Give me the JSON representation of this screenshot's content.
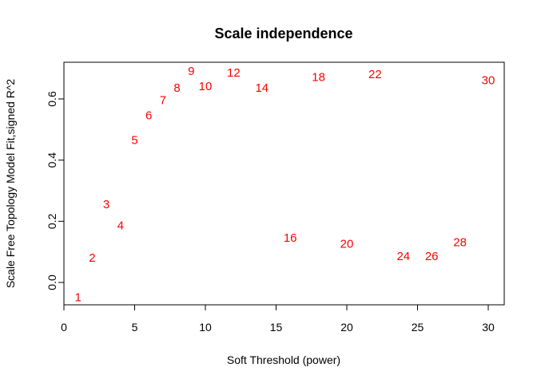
{
  "chart_data": {
    "type": "scatter",
    "title": "Scale independence",
    "xlabel": "Soft Threshold (power)",
    "ylabel": "Scale Free Topology Model Fit,signed R^2",
    "xlim": [
      0,
      30
    ],
    "ylim": [
      0,
      0.6
    ],
    "x_ticks": [
      "0",
      "5",
      "10",
      "15",
      "20",
      "25",
      "30"
    ],
    "y_ticks": [
      "0.0",
      "0.2",
      "0.4",
      "0.6"
    ],
    "grid": false,
    "marker": "text-labels",
    "color": "#ff0000",
    "points": [
      {
        "x": 1,
        "y": -0.05,
        "label": "1"
      },
      {
        "x": 2,
        "y": 0.08,
        "label": "2"
      },
      {
        "x": 3,
        "y": 0.255,
        "label": "3"
      },
      {
        "x": 4,
        "y": 0.185,
        "label": "4"
      },
      {
        "x": 5,
        "y": 0.465,
        "label": "5"
      },
      {
        "x": 6,
        "y": 0.545,
        "label": "6"
      },
      {
        "x": 7,
        "y": 0.595,
        "label": "7"
      },
      {
        "x": 8,
        "y": 0.635,
        "label": "8"
      },
      {
        "x": 9,
        "y": 0.69,
        "label": "9"
      },
      {
        "x": 10,
        "y": 0.64,
        "label": "10"
      },
      {
        "x": 12,
        "y": 0.685,
        "label": "12"
      },
      {
        "x": 14,
        "y": 0.635,
        "label": "14"
      },
      {
        "x": 16,
        "y": 0.145,
        "label": "16"
      },
      {
        "x": 18,
        "y": 0.67,
        "label": "18"
      },
      {
        "x": 20,
        "y": 0.125,
        "label": "20"
      },
      {
        "x": 22,
        "y": 0.68,
        "label": "22"
      },
      {
        "x": 24,
        "y": 0.085,
        "label": "24"
      },
      {
        "x": 26,
        "y": 0.085,
        "label": "26"
      },
      {
        "x": 28,
        "y": 0.13,
        "label": "28"
      },
      {
        "x": 30,
        "y": 0.66,
        "label": "30"
      }
    ]
  }
}
